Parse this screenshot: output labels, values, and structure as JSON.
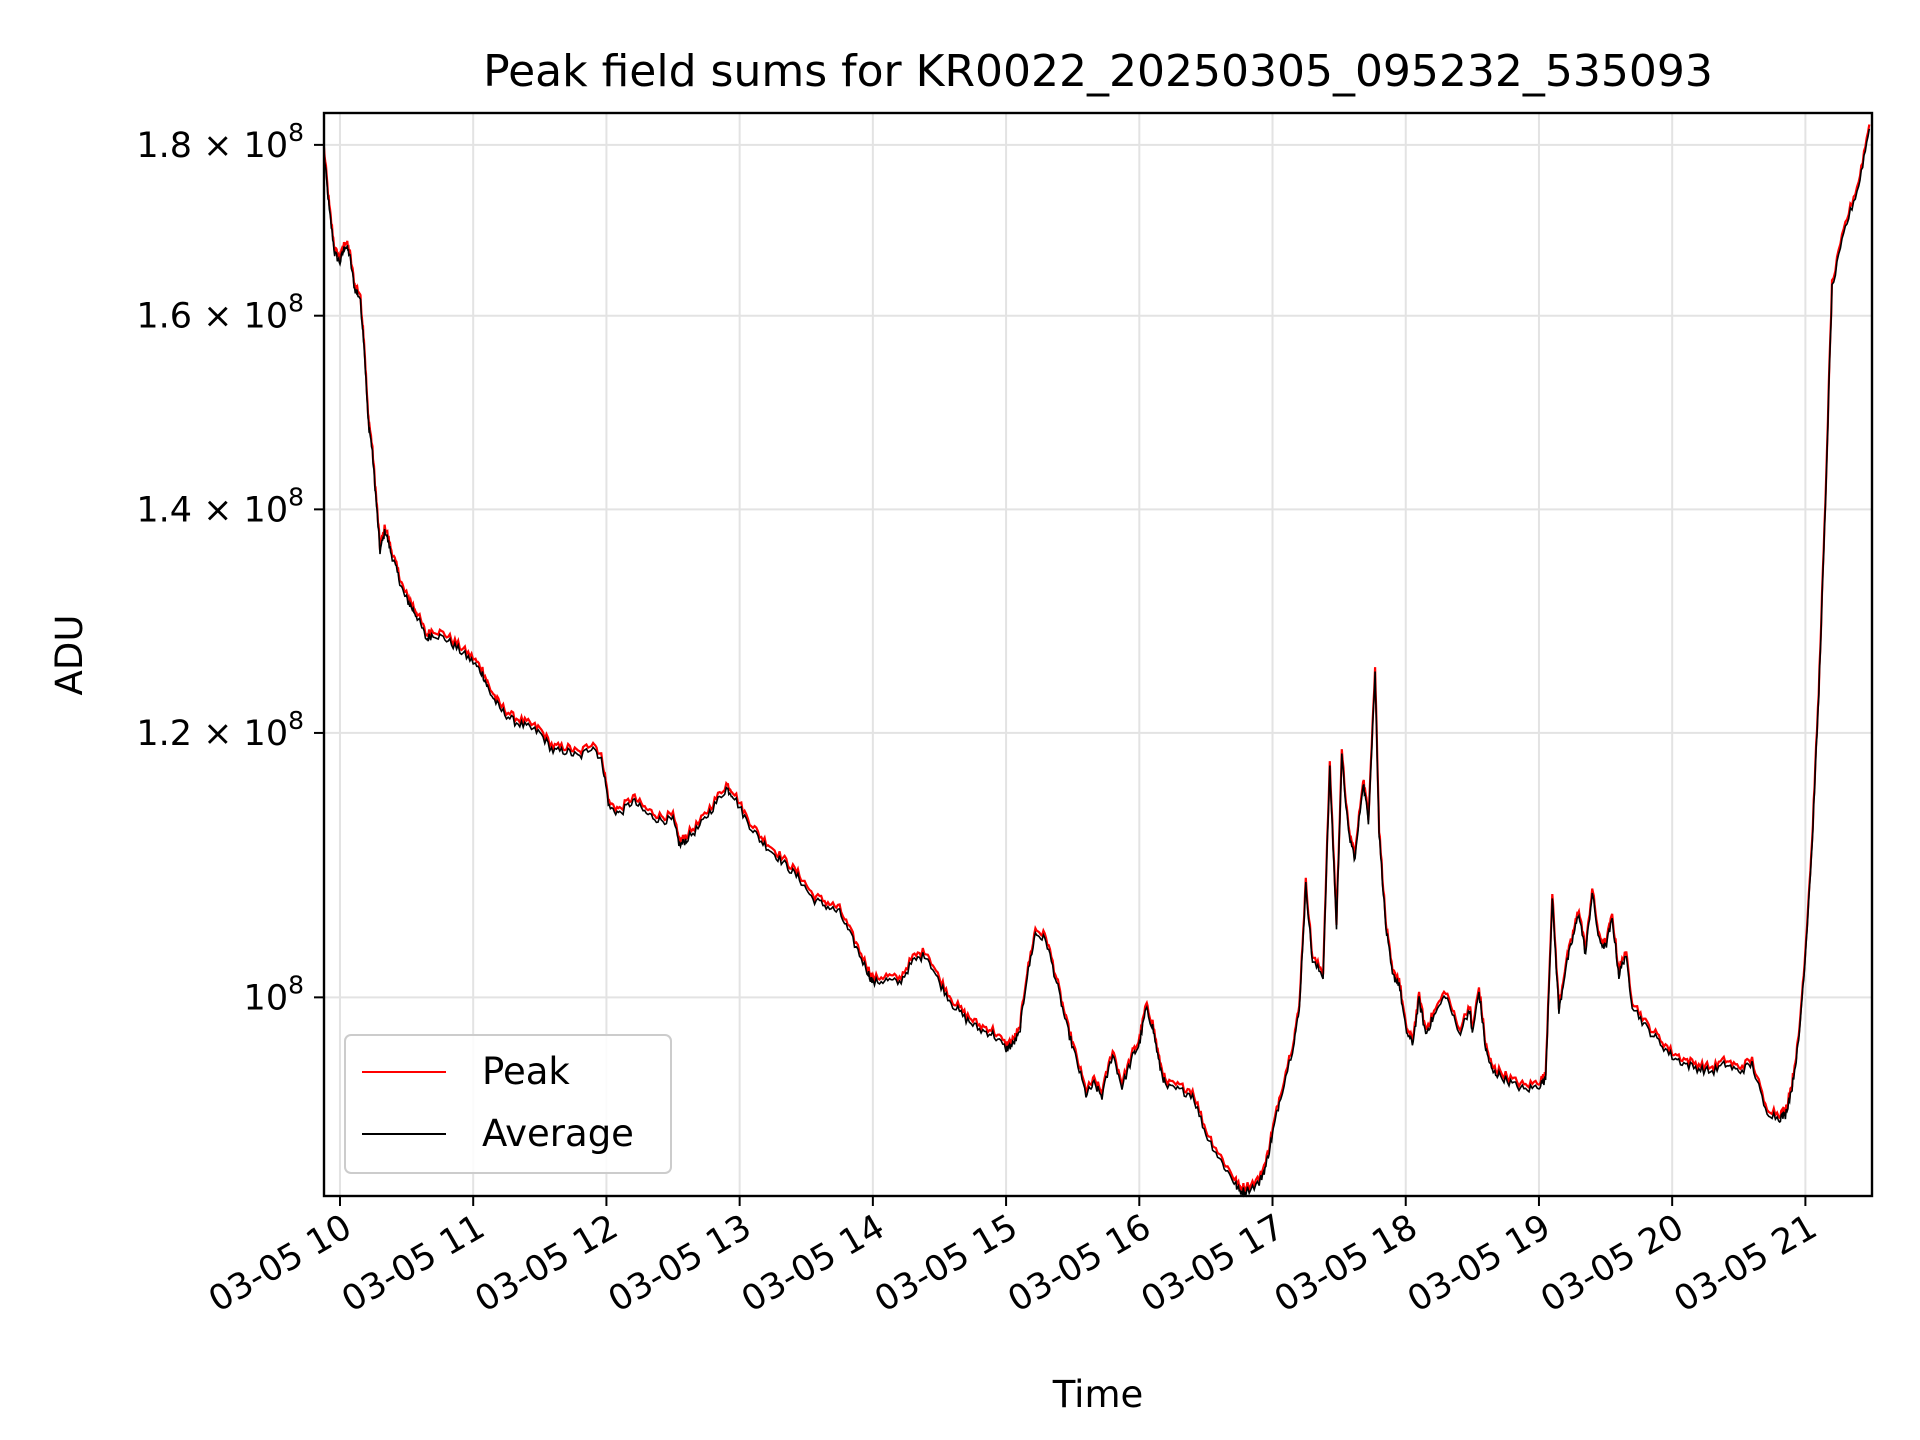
{
  "chart_data": {
    "type": "line",
    "title": "Peak field sums for KR0022_20250305_095232_535093",
    "xlabel": "Time",
    "ylabel": "ADU",
    "yscale": "log",
    "grid": true,
    "legend_position": "lower-left",
    "xlim": [
      9.88,
      21.5
    ],
    "ylim": [
      87200000,
      184000000
    ],
    "x_ticks": [
      {
        "value": 10,
        "label": "03-05 10"
      },
      {
        "value": 11,
        "label": "03-05 11"
      },
      {
        "value": 12,
        "label": "03-05 12"
      },
      {
        "value": 13,
        "label": "03-05 13"
      },
      {
        "value": 14,
        "label": "03-05 14"
      },
      {
        "value": 15,
        "label": "03-05 15"
      },
      {
        "value": 16,
        "label": "03-05 16"
      },
      {
        "value": 17,
        "label": "03-05 17"
      },
      {
        "value": 18,
        "label": "03-05 18"
      },
      {
        "value": 19,
        "label": "03-05 19"
      },
      {
        "value": 20,
        "label": "03-05 20"
      },
      {
        "value": 21,
        "label": "03-05 21"
      }
    ],
    "y_ticks": [
      {
        "value": 100000000,
        "base": "10",
        "exp": "8"
      },
      {
        "value": 120000000,
        "base": "1.2 × 10",
        "exp": "8"
      },
      {
        "value": 140000000,
        "base": "1.4 × 10",
        "exp": "8"
      },
      {
        "value": 160000000,
        "base": "1.6 × 10",
        "exp": "8"
      },
      {
        "value": 180000000,
        "base": "1.8 × 10",
        "exp": "8"
      }
    ],
    "series": [
      {
        "name": "Peak",
        "color": "#ff0000"
      },
      {
        "name": "Average",
        "color": "#000000"
      }
    ],
    "points": [
      [
        9.88,
        179
      ],
      [
        9.92,
        172
      ],
      [
        9.96,
        167
      ],
      [
        10.0,
        166
      ],
      [
        10.04,
        168
      ],
      [
        10.07,
        167
      ],
      [
        10.11,
        163
      ],
      [
        10.15,
        162
      ],
      [
        10.18,
        157
      ],
      [
        10.21,
        149
      ],
      [
        10.24,
        146
      ],
      [
        10.27,
        141
      ],
      [
        10.3,
        136
      ],
      [
        10.34,
        138
      ],
      [
        10.38,
        136
      ],
      [
        10.43,
        134
      ],
      [
        10.48,
        132
      ],
      [
        10.53,
        131
      ],
      [
        10.58,
        130
      ],
      [
        10.65,
        128
      ],
      [
        10.7,
        128.5
      ],
      [
        10.8,
        128
      ],
      [
        10.9,
        127
      ],
      [
        11.0,
        126
      ],
      [
        11.07,
        125
      ],
      [
        11.12,
        123.5
      ],
      [
        11.2,
        122
      ],
      [
        11.3,
        121
      ],
      [
        11.4,
        120.5
      ],
      [
        11.5,
        120
      ],
      [
        11.6,
        118.5
      ],
      [
        11.7,
        118.5
      ],
      [
        11.8,
        118
      ],
      [
        11.9,
        119
      ],
      [
        11.97,
        117.5
      ],
      [
        12.02,
        114
      ],
      [
        12.1,
        113.5
      ],
      [
        12.2,
        114.5
      ],
      [
        12.3,
        113.5
      ],
      [
        12.4,
        113
      ],
      [
        12.5,
        113
      ],
      [
        12.55,
        111
      ],
      [
        12.6,
        111.5
      ],
      [
        12.7,
        112.5
      ],
      [
        12.8,
        114
      ],
      [
        12.9,
        115.5
      ],
      [
        12.95,
        115
      ],
      [
        13.05,
        113
      ],
      [
        13.15,
        111.5
      ],
      [
        13.25,
        110.5
      ],
      [
        13.35,
        109.5
      ],
      [
        13.45,
        108.5
      ],
      [
        13.55,
        107
      ],
      [
        13.65,
        106.5
      ],
      [
        13.75,
        106
      ],
      [
        13.85,
        104
      ],
      [
        13.95,
        102
      ],
      [
        14.0,
        101
      ],
      [
        14.1,
        101.2
      ],
      [
        14.2,
        101
      ],
      [
        14.3,
        102.5
      ],
      [
        14.4,
        103
      ],
      [
        14.5,
        101
      ],
      [
        14.6,
        99.5
      ],
      [
        14.7,
        98.5
      ],
      [
        14.8,
        97.8
      ],
      [
        14.9,
        97.5
      ],
      [
        15.0,
        96.5
      ],
      [
        15.05,
        96.8
      ],
      [
        15.1,
        97.5
      ],
      [
        15.15,
        101
      ],
      [
        15.22,
        104.5
      ],
      [
        15.3,
        104
      ],
      [
        15.38,
        101
      ],
      [
        15.45,
        98.2
      ],
      [
        15.52,
        96
      ],
      [
        15.6,
        93.5
      ],
      [
        15.66,
        94.2
      ],
      [
        15.72,
        93.4
      ],
      [
        15.8,
        96.2
      ],
      [
        15.87,
        94
      ],
      [
        15.95,
        96
      ],
      [
        16.0,
        96.8
      ],
      [
        16.05,
        99.2
      ],
      [
        16.1,
        98
      ],
      [
        16.15,
        95.5
      ],
      [
        16.2,
        94
      ],
      [
        16.3,
        93.8
      ],
      [
        16.4,
        93.5
      ],
      [
        16.5,
        91
      ],
      [
        16.6,
        89.5
      ],
      [
        16.7,
        88.2
      ],
      [
        16.75,
        87.5
      ],
      [
        16.8,
        87.5
      ],
      [
        16.9,
        88
      ],
      [
        16.95,
        89
      ],
      [
        17.0,
        91
      ],
      [
        17.05,
        93
      ],
      [
        17.15,
        96.5
      ],
      [
        17.2,
        99
      ],
      [
        17.25,
        108
      ],
      [
        17.3,
        102.5
      ],
      [
        17.38,
        101.5
      ],
      [
        17.43,
        117
      ],
      [
        17.48,
        105
      ],
      [
        17.52,
        118
      ],
      [
        17.57,
        112
      ],
      [
        17.62,
        110
      ],
      [
        17.68,
        116
      ],
      [
        17.72,
        113
      ],
      [
        17.77,
        125
      ],
      [
        17.8,
        112
      ],
      [
        17.85,
        105
      ],
      [
        17.9,
        101.5
      ],
      [
        17.95,
        101
      ],
      [
        18.0,
        97.8
      ],
      [
        18.05,
        96.8
      ],
      [
        18.1,
        99.8
      ],
      [
        18.15,
        97.5
      ],
      [
        18.2,
        98.5
      ],
      [
        18.3,
        100.2
      ],
      [
        18.4,
        97.5
      ],
      [
        18.48,
        99.2
      ],
      [
        18.5,
        97.5
      ],
      [
        18.55,
        100.4
      ],
      [
        18.6,
        96.5
      ],
      [
        18.65,
        95
      ],
      [
        18.7,
        94.8
      ],
      [
        18.8,
        94.2
      ],
      [
        18.9,
        93.8
      ],
      [
        19.0,
        94.1
      ],
      [
        19.05,
        94.5
      ],
      [
        19.1,
        107
      ],
      [
        19.15,
        99
      ],
      [
        19.2,
        102
      ],
      [
        19.25,
        104
      ],
      [
        19.3,
        106
      ],
      [
        19.35,
        103
      ],
      [
        19.4,
        107.5
      ],
      [
        19.45,
        104
      ],
      [
        19.5,
        103.5
      ],
      [
        19.55,
        105.5
      ],
      [
        19.6,
        101.5
      ],
      [
        19.65,
        103
      ],
      [
        19.7,
        99.5
      ],
      [
        19.8,
        98
      ],
      [
        19.9,
        97
      ],
      [
        20.0,
        96
      ],
      [
        20.1,
        95.5
      ],
      [
        20.2,
        95.2
      ],
      [
        20.3,
        95
      ],
      [
        20.4,
        95.5
      ],
      [
        20.5,
        95
      ],
      [
        20.6,
        95.5
      ],
      [
        20.7,
        92.5
      ],
      [
        20.8,
        92
      ],
      [
        20.85,
        92.2
      ],
      [
        20.9,
        94
      ],
      [
        20.95,
        97
      ],
      [
        21.0,
        103
      ],
      [
        21.05,
        111
      ],
      [
        21.1,
        123
      ],
      [
        21.15,
        140
      ],
      [
        21.2,
        163
      ],
      [
        21.3,
        170
      ],
      [
        21.4,
        175
      ],
      [
        21.48,
        182
      ]
    ]
  }
}
